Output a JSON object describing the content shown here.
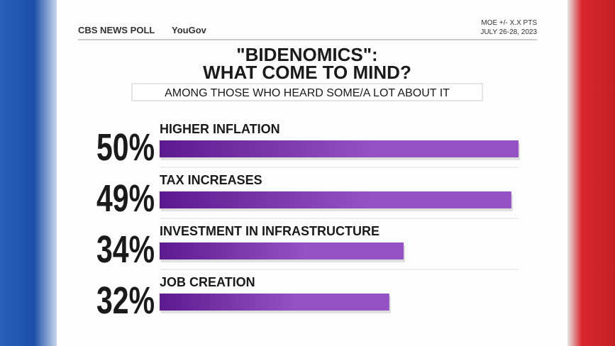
{
  "chart_data": {
    "type": "bar",
    "brand": "CBS NEWS POLL",
    "partner": "YouGov",
    "moe": "MOE +/- X.X PTS",
    "dates": "JULY 26-28, 2023",
    "title": [
      "\"BIDENOMICS\":",
      "WHAT  COME TO MIND?"
    ],
    "subtitle": "AMONG THOSE WHO HEARD SOME/A LOT ABOUT IT",
    "categories": [
      "HIGHER INFLATION",
      "TAX INCREASES",
      "INVESTMENT IN INFRASTRUCTURE",
      "JOB CREATION"
    ],
    "values": [
      50,
      49,
      34,
      32
    ],
    "value_labels": [
      "50%",
      "49%",
      "34%",
      "32%"
    ],
    "color": "#9552c4"
  }
}
